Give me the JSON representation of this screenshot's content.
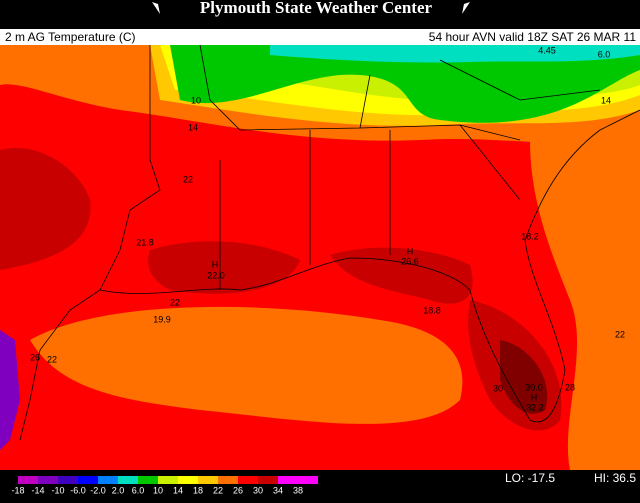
{
  "header": {
    "title": "Plymouth State Weather Center"
  },
  "map": {
    "field": "2 m AG Temperature (C)",
    "run": "54 hour AVN valid 18Z SAT 26 MAR 11",
    "labels": [
      "4.45",
      "6.0",
      "10",
      "14",
      "14",
      "22",
      "21.8",
      "H",
      "22.0",
      "H",
      "26.6",
      "18.2",
      "22",
      "19.9",
      "18.8",
      "22",
      "26",
      "22",
      "30",
      "30.0",
      "H",
      "32.2",
      "28"
    ]
  },
  "legend": {
    "ticks": [
      "-18",
      "-14",
      "-10",
      "-6.0",
      "-2.0",
      "2.0",
      "6.0",
      "10",
      "14",
      "18",
      "22",
      "26",
      "30",
      "34",
      "38"
    ]
  },
  "stats": {
    "lo": "LO: -17.5",
    "hi": "HI: 36.5"
  }
}
